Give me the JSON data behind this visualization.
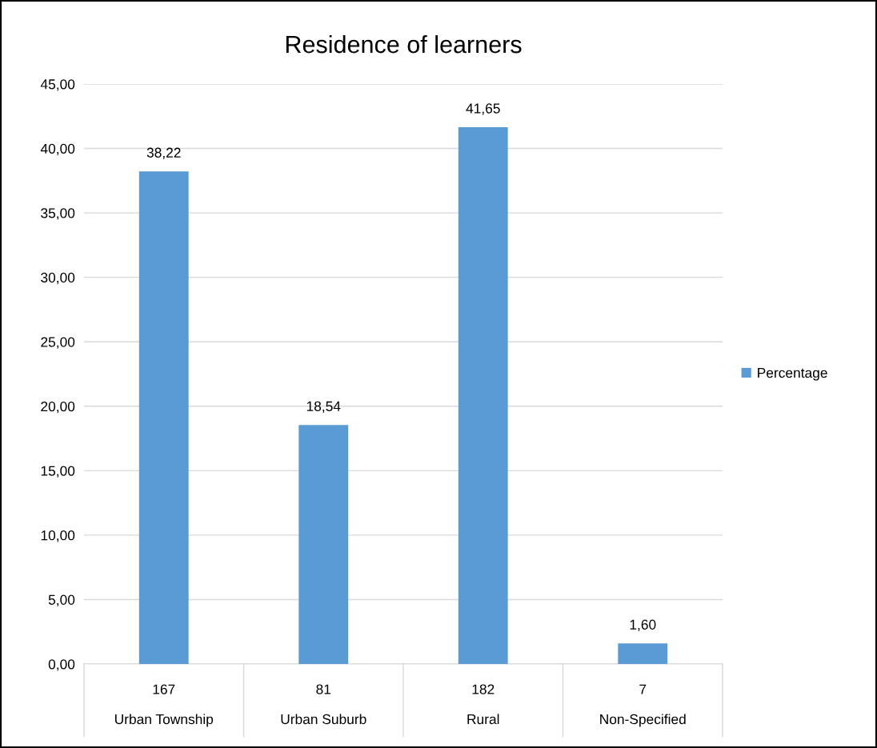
{
  "chart_data": {
    "type": "bar",
    "title": "Residence of learners",
    "categories": [
      "167\n\nUrban Township",
      "81\n\nUrban Suburb",
      "182\n\nRural",
      "7\n\nNon-Specified"
    ],
    "series": [
      {
        "name": "Percentage",
        "color": "#5b9bd5",
        "values": [
          38.22,
          18.54,
          41.65,
          1.6
        ],
        "value_labels": [
          "38,22",
          "18,54",
          "41,65",
          "1,60"
        ]
      }
    ],
    "ylim": [
      0,
      45
    ],
    "yticks": [
      {
        "value": 0,
        "label": "0,00"
      },
      {
        "value": 5,
        "label": "5,00"
      },
      {
        "value": 10,
        "label": "10,00"
      },
      {
        "value": 15,
        "label": "15,00"
      },
      {
        "value": 20,
        "label": "20,00"
      },
      {
        "value": 25,
        "label": "25,00"
      },
      {
        "value": 30,
        "label": "30,00"
      },
      {
        "value": 35,
        "label": "35,00"
      },
      {
        "value": 40,
        "label": "40,00"
      },
      {
        "value": 45,
        "label": "45,00"
      }
    ],
    "grid": "y",
    "legend": "right"
  }
}
